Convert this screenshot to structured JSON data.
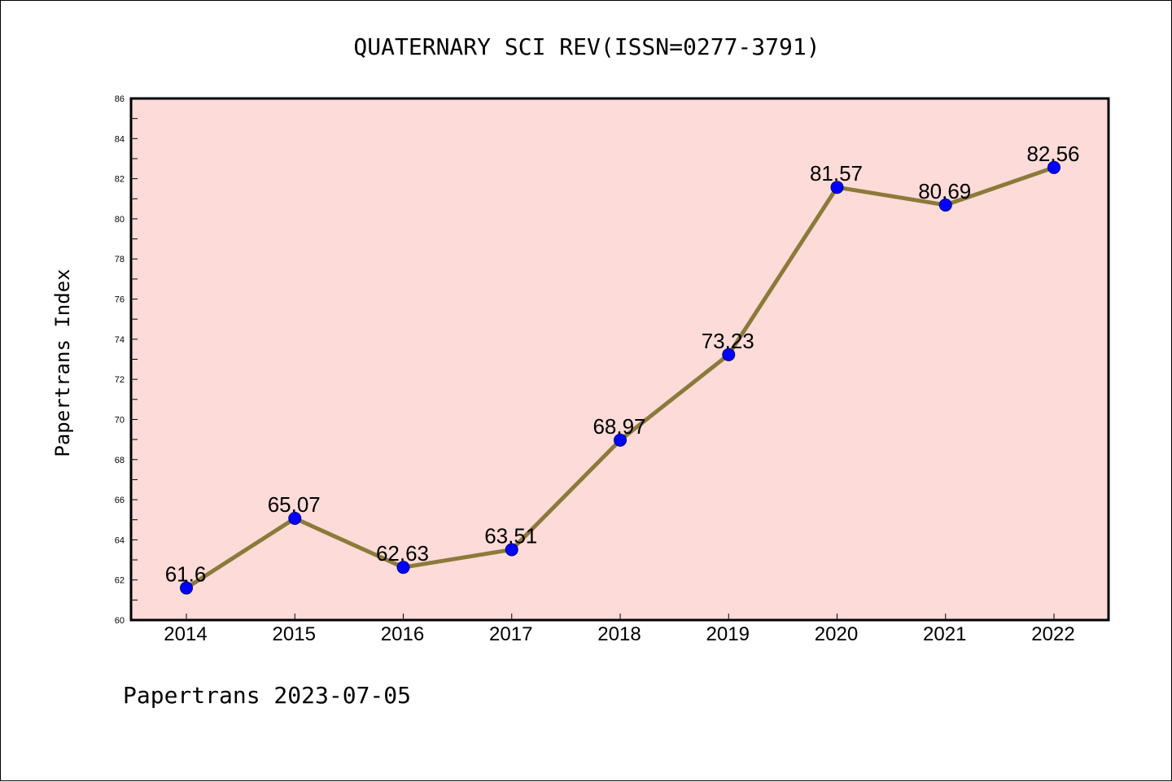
{
  "chart_data": {
    "type": "line",
    "title": "QUATERNARY SCI REV(ISSN=0277-3791)",
    "xlabel": "",
    "ylabel": "Papertrans Index",
    "footer": "Papertrans 2023-07-05",
    "categories": [
      "2014",
      "2015",
      "2016",
      "2017",
      "2018",
      "2019",
      "2020",
      "2021",
      "2022"
    ],
    "series": [
      {
        "values": [
          61.6,
          65.07,
          62.63,
          63.51,
          68.97,
          73.23,
          81.57,
          80.69,
          82.56
        ]
      }
    ],
    "data_labels": [
      "61.6",
      "65.07",
      "62.63",
      "63.51",
      "68.97",
      "73.23",
      "81.57",
      "80.69",
      "82.56"
    ],
    "ylim": [
      60,
      86
    ],
    "y_ticks": [
      "60",
      "62",
      "64",
      "66",
      "68",
      "70",
      "72",
      "74",
      "76",
      "78",
      "80",
      "82",
      "84",
      "86"
    ],
    "grid": false,
    "legend": "none",
    "colors": {
      "plot_background": "#fddbd8",
      "line": "#8b7a3a",
      "marker": "#0000ff",
      "marker_edge": "#00007a"
    }
  }
}
